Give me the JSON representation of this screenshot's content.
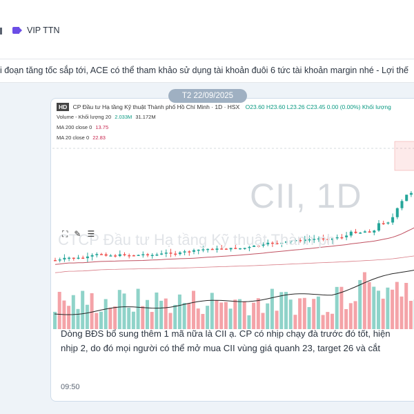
{
  "channel": {
    "name": "VIP TTN",
    "icon": "tag-icon"
  },
  "pinned": {
    "text": "i đoạn tăng tốc sắp tới, ACE có thể tham khảo sử dụng tài khoản đuôi 6 tức tài khoản margin nhé - Lợi thế"
  },
  "date_badge": "T2 22/09/2025",
  "chart": {
    "badge": "HD",
    "header": "CP Đầu tư Hạ tầng Kỹ thuật Thành phố Hồ Chí Minh · 1D · HSX",
    "ohlc": "O23.60  H23.60  L23.26  C23.45  0.00 (0.00%)  Khối lượng",
    "volume_label": "Volume - Khối lượng 20",
    "volume_v1": "2.033M",
    "volume_v2": "31.172M",
    "ma200_label": "MA 200 close 0",
    "ma200_value": "13.75",
    "ma20_label": "MA 20 close 0",
    "ma20_value": "22.83",
    "watermark": "CII, 1D",
    "watermark_sub": "CTCP Đầu tư Hạ tầng Kỹ thuật Thành ph"
  },
  "message": {
    "line1": "Dòng BĐS bổ sung thêm 1 mã nữa là CII ạ. CP có nhịp chạy đà trước đó tốt, hiện",
    "line2": "nhịp 2, do đó mọi người có thể mở mua CII vùng giá quanh 23, target 26 và cắt",
    "time": "09:50"
  },
  "colors": {
    "up": "#26a69a",
    "down": "#ef5350",
    "vol_up": "#8fd3c9",
    "vol_down": "#f4a3a8",
    "accent": "#6b4de6"
  }
}
